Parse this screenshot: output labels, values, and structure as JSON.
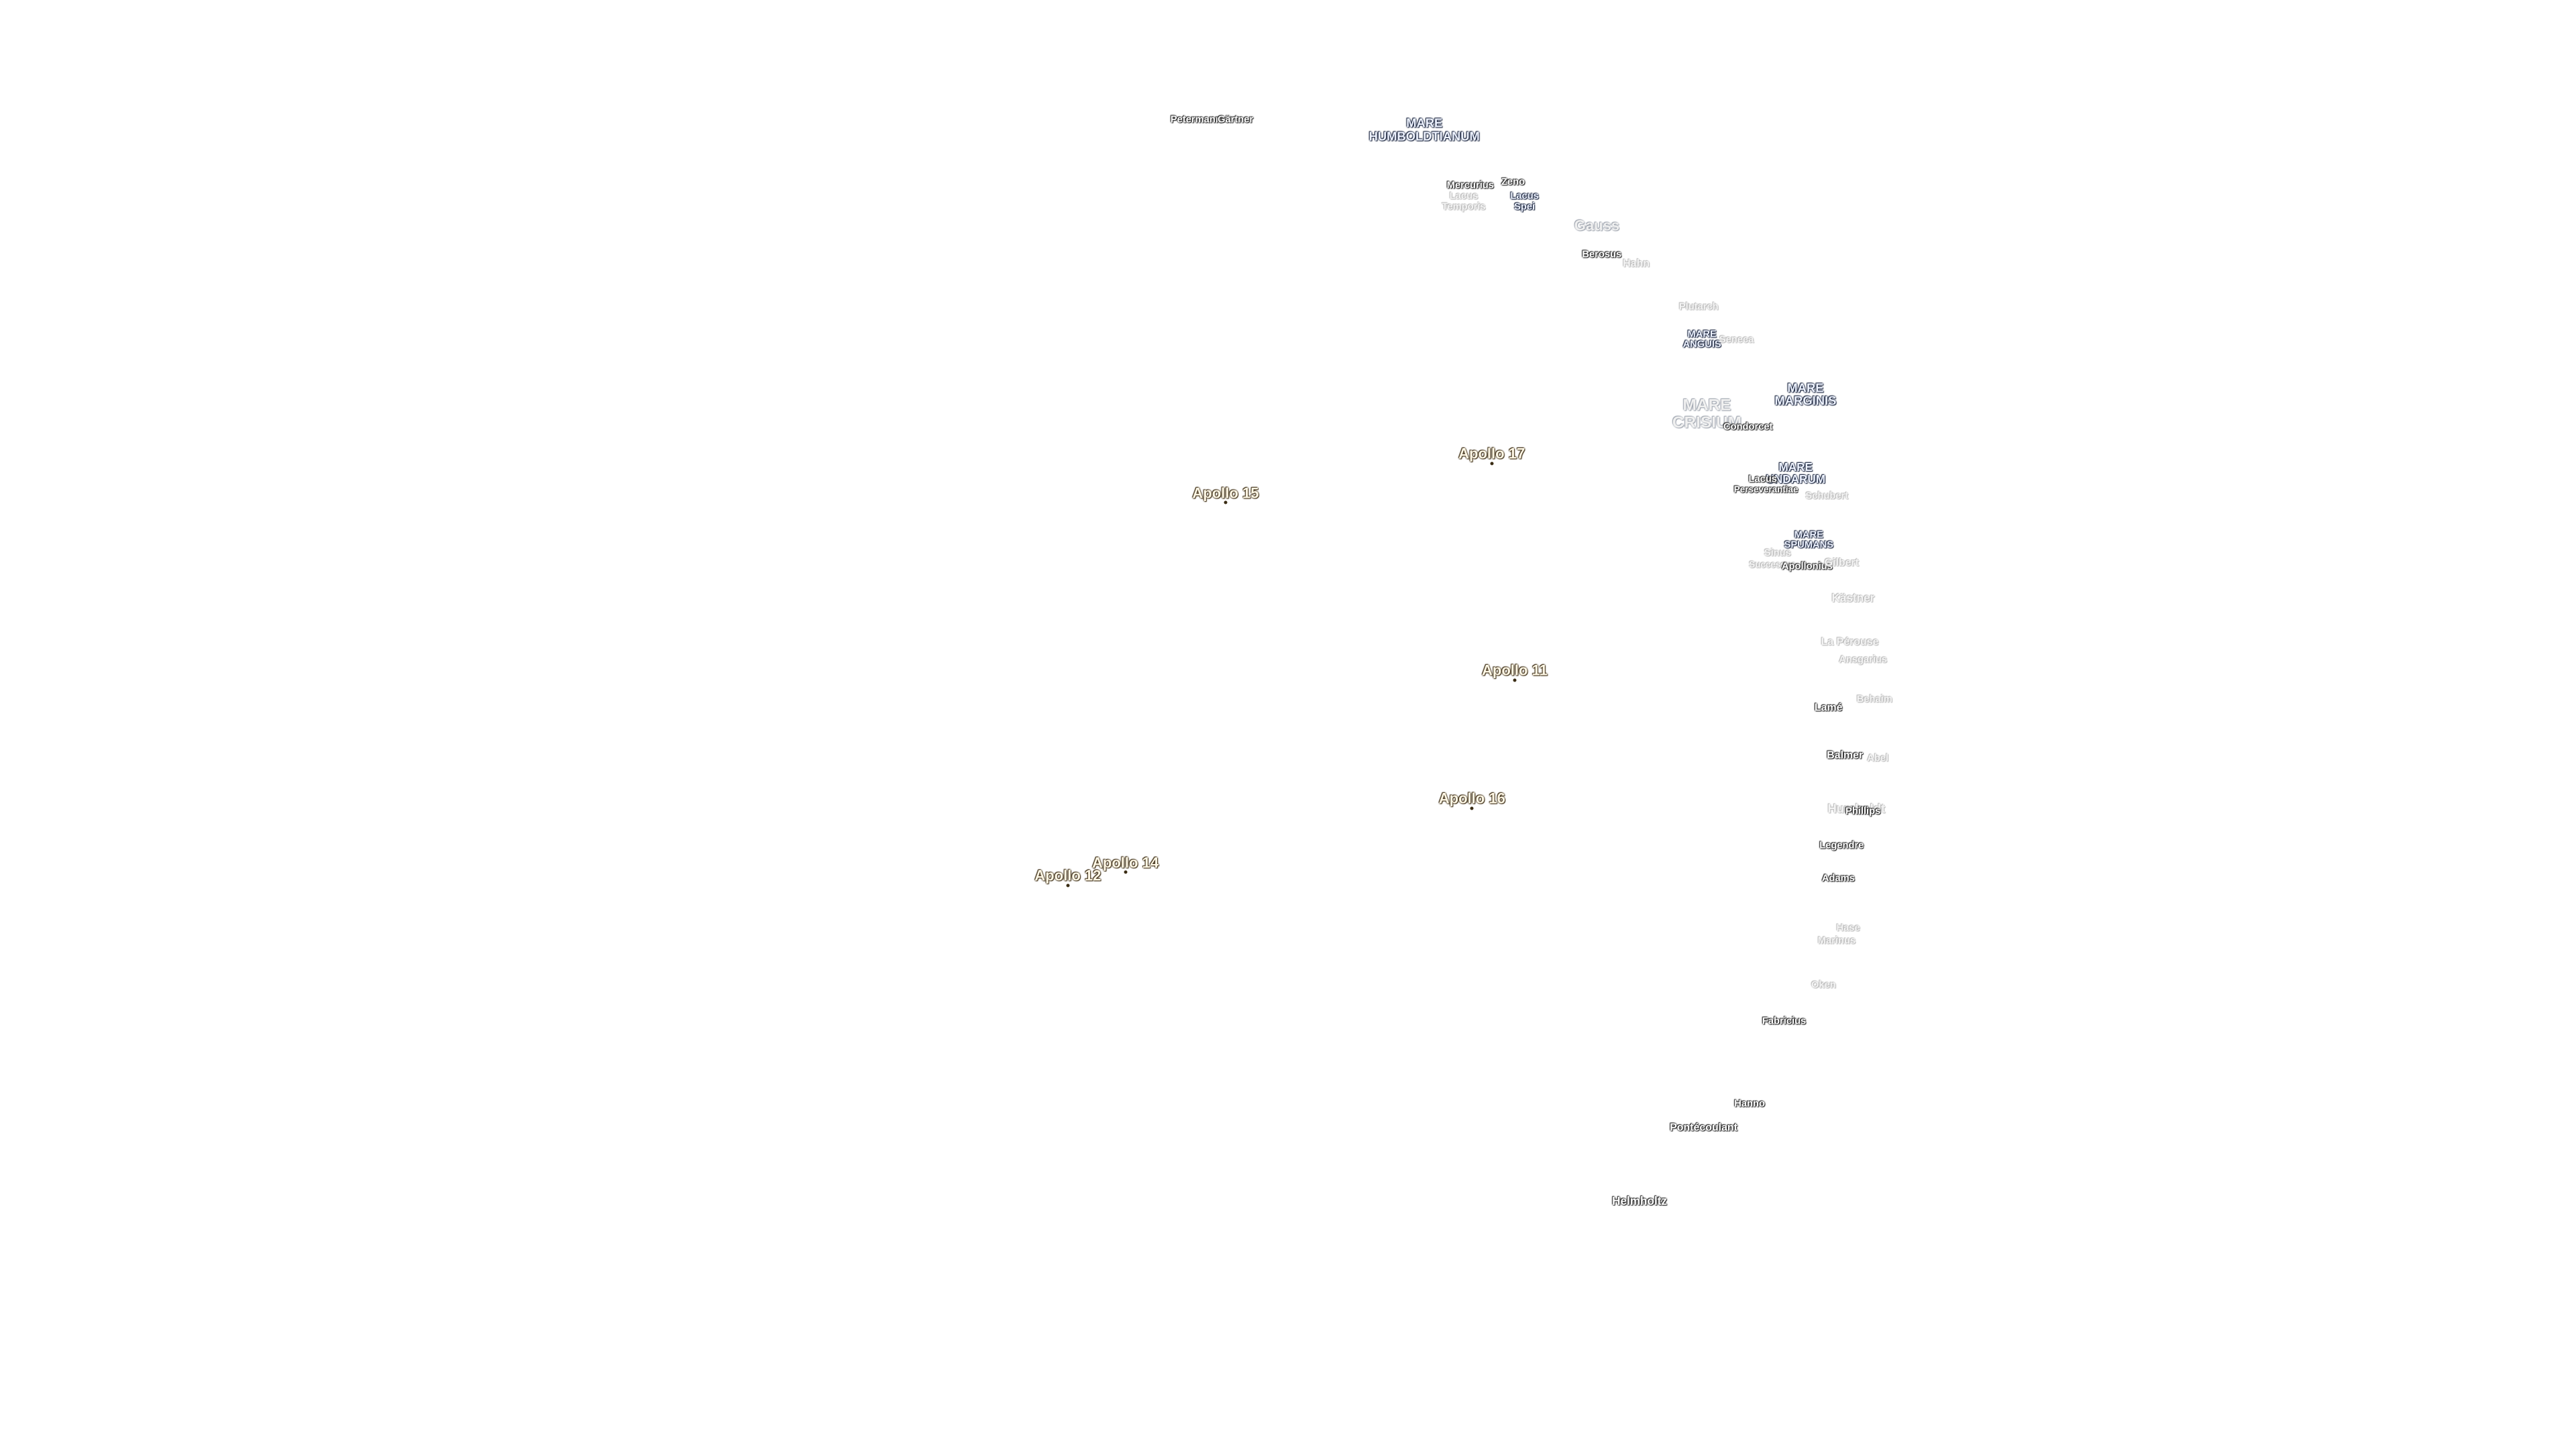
{
  "sites": [
    "Apollo 17",
    "Apollo 15",
    "Apollo 11",
    "Apollo 16",
    "Apollo 14",
    "Apollo 12"
  ],
  "features": [
    [
      "Petermann"
    ],
    [
      "Gärtner"
    ],
    [
      "MARE",
      "HUMBOLDTIANUM"
    ],
    [
      "Mercurius"
    ],
    [
      "Zeno"
    ],
    [
      "Lacus",
      "Temporis"
    ],
    [
      "Lacus",
      "Spei"
    ],
    [
      "Gauss"
    ],
    [
      "Berosus"
    ],
    [
      "Hahn"
    ],
    [
      "Plutarch"
    ],
    [
      "MARE",
      "ANGUIS"
    ],
    [
      "Seneca"
    ],
    [
      "MARE",
      "MARGINIS"
    ],
    [
      "MARE",
      "CRISIUM"
    ],
    [
      "Condorcet"
    ],
    [
      "MARE",
      "UNDARUM"
    ],
    [
      "Lacus"
    ],
    [
      "Perseverantiae"
    ],
    [
      "Schubert"
    ],
    [
      "MARE",
      "SPUMANS"
    ],
    [
      "Sinus"
    ],
    [
      "Successus"
    ],
    [
      "Apollonius"
    ],
    [
      "Gilbert"
    ],
    [
      "Kästner"
    ],
    [
      "La Pérouse"
    ],
    [
      "Ansgarius"
    ],
    [
      "Behaim"
    ],
    [
      "Lamé"
    ],
    [
      "Balmer"
    ],
    [
      "Abel"
    ],
    [
      "Humboldt"
    ],
    [
      "Phillips"
    ],
    [
      "Legendre"
    ],
    [
      "Adams"
    ],
    [
      "Hase"
    ],
    [
      "Marinus"
    ],
    [
      "Oken"
    ],
    [
      "Fabricius"
    ],
    [
      "Hanno"
    ],
    [
      "Pontécoulant"
    ],
    [
      "Helmholtz"
    ]
  ]
}
